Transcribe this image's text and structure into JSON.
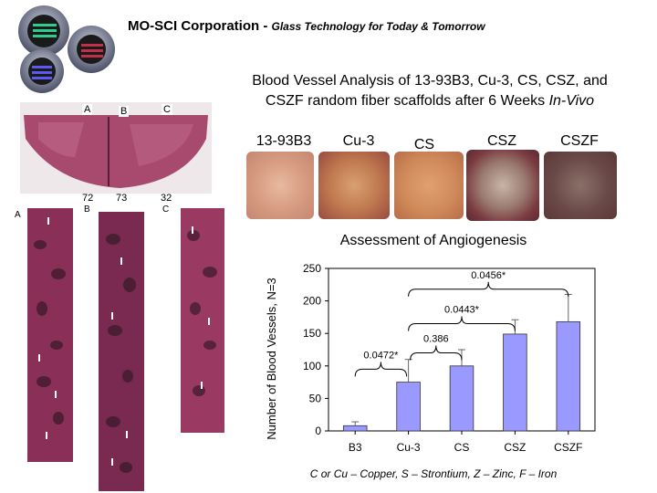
{
  "header": {
    "company": "MO-SCI Corporation - ",
    "tagline": "Glass Technology for Today & Tomorrow"
  },
  "slide": {
    "title_line1": "Blood Vessel Analysis of 13-93B3, Cu-3, CS, CSZ, and",
    "title_line2": "CSZF random fiber scaffolds after 6 Weeks ",
    "title_italic": "In-Vivo"
  },
  "samples": [
    "13-93B3",
    "Cu-3",
    "CS",
    "CSZ",
    "CSZF"
  ],
  "histology": {
    "overview_labels": [
      "A",
      "B",
      "C"
    ],
    "percent_labels": [
      "72",
      "73",
      "32"
    ],
    "strip_labels": [
      "A",
      "B",
      "C"
    ]
  },
  "chart_data": {
    "type": "bar",
    "title": "Assessment of Angiogenesis",
    "ylabel": "Number of Blood Vessels, N=3",
    "xlabel": "",
    "categories": [
      "B3",
      "Cu-3",
      "CS",
      "CSZ",
      "CSZF"
    ],
    "values": [
      8,
      75,
      100,
      149,
      168
    ],
    "errors": [
      6,
      35,
      25,
      22,
      42
    ],
    "ylim": [
      0,
      250
    ],
    "yticks": [
      0,
      50,
      100,
      150,
      200,
      250
    ],
    "bar_color": "#9999ff",
    "comparisons": [
      {
        "from": 0,
        "to": 1,
        "label": "0.0472*"
      },
      {
        "from": 1,
        "to": 2,
        "label": "0.386"
      },
      {
        "from": 1,
        "to": 3,
        "label": "0.0443*"
      },
      {
        "from": 1,
        "to": 4,
        "label": "0.0456*"
      }
    ]
  },
  "footnote": "C or Cu – Copper, S – Strontium, Z – Zinc, F – Iron"
}
